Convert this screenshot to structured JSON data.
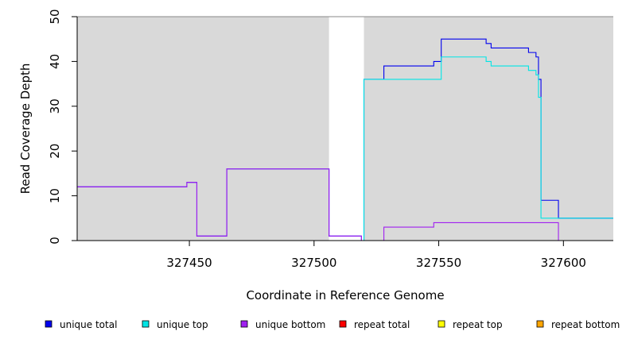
{
  "chart_data": {
    "type": "line",
    "title": "",
    "xlabel": "Coordinate in Reference Genome",
    "ylabel": "Read Coverage Depth",
    "xlim": [
      327405,
      327620
    ],
    "ylim": [
      0,
      50
    ],
    "x_ticks": [
      327450,
      327500,
      327550,
      327600
    ],
    "x_tick_labels": [
      "327450",
      "327500",
      "327550",
      "327600"
    ],
    "y_ticks": [
      0,
      10,
      20,
      30,
      40,
      50
    ],
    "y_tick_labels": [
      "0",
      "10",
      "20",
      "30",
      "40",
      "50"
    ],
    "grid": false,
    "shaded_regions": [
      {
        "x0": 327405,
        "x1": 327506,
        "color": "#d9d9d9"
      },
      {
        "x0": 327520,
        "x1": 327620,
        "color": "#d9d9d9"
      }
    ],
    "legend_position": "bottom",
    "series": [
      {
        "name": "unique total",
        "color": "#0000ee",
        "points": [
          [
            327405,
            12
          ],
          [
            327449,
            12
          ],
          [
            327449,
            13
          ],
          [
            327453,
            13
          ],
          [
            327453,
            1
          ],
          [
            327465,
            1
          ],
          [
            327465,
            16
          ],
          [
            327506,
            16
          ],
          [
            327506,
            1
          ],
          [
            327519,
            1
          ],
          [
            327519,
            0
          ],
          [
            327520,
            0
          ],
          [
            327520,
            36
          ],
          [
            327528,
            36
          ],
          [
            327528,
            39
          ],
          [
            327548,
            39
          ],
          [
            327548,
            40
          ],
          [
            327551,
            40
          ],
          [
            327551,
            45
          ],
          [
            327569,
            45
          ],
          [
            327569,
            44
          ],
          [
            327571,
            44
          ],
          [
            327571,
            43
          ],
          [
            327586,
            43
          ],
          [
            327586,
            42
          ],
          [
            327589,
            42
          ],
          [
            327589,
            41
          ],
          [
            327590,
            41
          ],
          [
            327590,
            36
          ],
          [
            327591,
            36
          ],
          [
            327591,
            9
          ],
          [
            327598,
            9
          ],
          [
            327598,
            5
          ],
          [
            327620,
            5
          ]
        ]
      },
      {
        "name": "unique top",
        "color": "#00e5e5",
        "points": [
          [
            327520,
            0
          ],
          [
            327520,
            36
          ],
          [
            327551,
            36
          ],
          [
            327551,
            41
          ],
          [
            327569,
            41
          ],
          [
            327569,
            40
          ],
          [
            327571,
            40
          ],
          [
            327571,
            39
          ],
          [
            327586,
            39
          ],
          [
            327586,
            38
          ],
          [
            327589,
            38
          ],
          [
            327589,
            37
          ],
          [
            327590,
            37
          ],
          [
            327590,
            32
          ],
          [
            327591,
            32
          ],
          [
            327591,
            5
          ],
          [
            327620,
            5
          ]
        ]
      },
      {
        "name": "unique bottom",
        "color": "#a020f0",
        "points": [
          [
            327405,
            12
          ],
          [
            327449,
            12
          ],
          [
            327449,
            13
          ],
          [
            327453,
            13
          ],
          [
            327453,
            1
          ],
          [
            327465,
            1
          ],
          [
            327465,
            16
          ],
          [
            327506,
            16
          ],
          [
            327506,
            1
          ],
          [
            327519,
            1
          ],
          [
            327519,
            0
          ],
          [
            327528,
            0
          ],
          [
            327528,
            3
          ],
          [
            327548,
            3
          ],
          [
            327548,
            4
          ],
          [
            327598,
            4
          ],
          [
            327598,
            0
          ],
          [
            327620,
            0
          ]
        ]
      },
      {
        "name": "repeat total",
        "color": "#ff0000",
        "points": [
          [
            327405,
            0
          ],
          [
            327620,
            0
          ]
        ]
      },
      {
        "name": "repeat top",
        "color": "#ffff00",
        "points": [
          [
            327405,
            0
          ],
          [
            327620,
            0
          ]
        ]
      },
      {
        "name": "repeat bottom",
        "color": "#ffa500",
        "points": [
          [
            327520,
            0
          ],
          [
            327598,
            0
          ]
        ]
      }
    ]
  }
}
